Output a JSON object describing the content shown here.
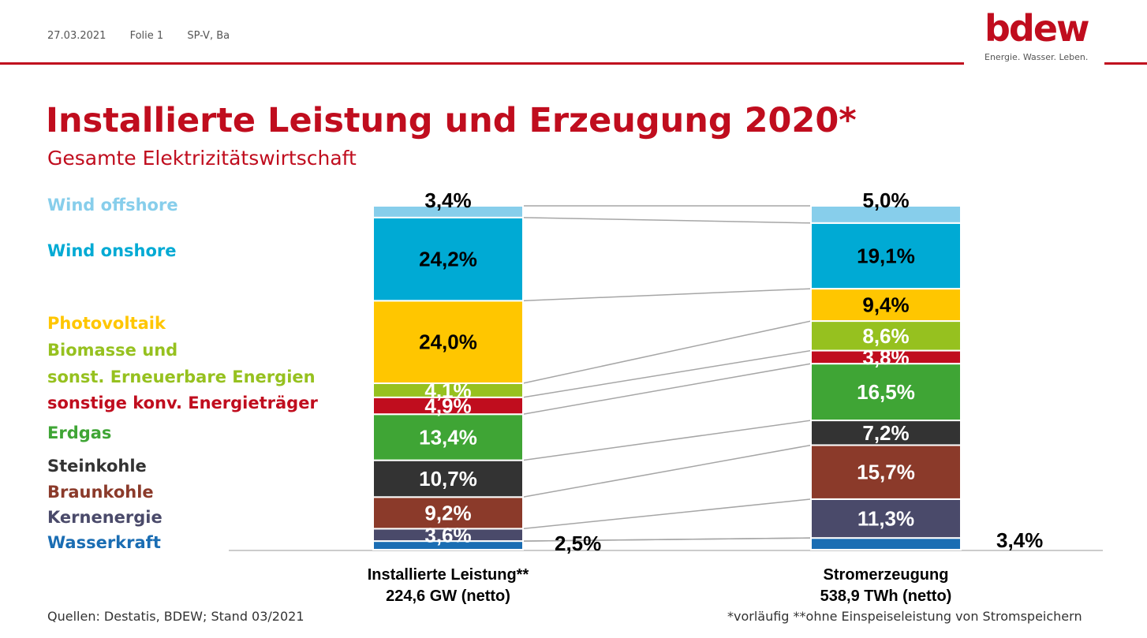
{
  "header": {
    "date": "27.03.2021",
    "slide": "Folie 1",
    "author": "SP-V, Ba"
  },
  "logo": {
    "word": "bdew",
    "tagline": "Energie. Wasser. Leben."
  },
  "title": "Installierte Leistung und Erzeugung 2020*",
  "subtitle": "Gesamte Elektrizitätswirtschaft",
  "legend": [
    {
      "label": "Wind offshore",
      "color": "#87ceeb"
    },
    {
      "label": "Wind onshore",
      "color": "#00aad4"
    },
    {
      "label": "Photovoltaik",
      "color": "#ffc600"
    },
    {
      "label": "Biomasse und",
      "color": "#96c11f"
    },
    {
      "label": "sonst. Erneuerbare Energien",
      "color": "#96c11f"
    },
    {
      "label": "sonstige konv. Energieträger",
      "color": "#c00d1e"
    },
    {
      "label": "Erdgas",
      "color": "#3fa535"
    },
    {
      "label": "Steinkohle",
      "color": "#333333"
    },
    {
      "label": "Braunkohle",
      "color": "#8b3a2a"
    },
    {
      "label": "Kernenergie",
      "color": "#4a4a6a"
    },
    {
      "label": "Wasserkraft",
      "color": "#1a6db3"
    }
  ],
  "chart_data": {
    "type": "bar",
    "stacked": true,
    "categories": [
      "Installierte Leistung**",
      "Stromerzeugung"
    ],
    "category_units": [
      "224,6 GW (netto)",
      "538,9 TWh (netto)"
    ],
    "series": [
      {
        "name": "Wasserkraft",
        "values": [
          2.5,
          3.4
        ],
        "labels": [
          "2,5%",
          "3,4%"
        ],
        "color": "#1a6db3",
        "text_color": "#000000",
        "label_outside": true
      },
      {
        "name": "Kernenergie",
        "values": [
          3.6,
          11.3
        ],
        "labels": [
          "3,6%",
          "11,3%"
        ],
        "color": "#4a4a6a",
        "text_color": "#ffffff"
      },
      {
        "name": "Braunkohle",
        "values": [
          9.2,
          15.7
        ],
        "labels": [
          "9,2%",
          "15,7%"
        ],
        "color": "#8b3a2a",
        "text_color": "#ffffff"
      },
      {
        "name": "Steinkohle",
        "values": [
          10.7,
          7.2
        ],
        "labels": [
          "10,7%",
          "7,2%"
        ],
        "color": "#333333",
        "text_color": "#ffffff"
      },
      {
        "name": "Erdgas",
        "values": [
          13.4,
          16.5
        ],
        "labels": [
          "13,4%",
          "16,5%"
        ],
        "color": "#3fa535",
        "text_color": "#ffffff"
      },
      {
        "name": "sonstige konv. Energieträger",
        "values": [
          4.9,
          3.8
        ],
        "labels": [
          "4,9%",
          "3,8%"
        ],
        "color": "#c00d1e",
        "text_color": "#ffffff"
      },
      {
        "name": "Biomasse und sonst. Erneuerbare Energien",
        "values": [
          4.1,
          8.6
        ],
        "labels": [
          "4,1%",
          "8,6%"
        ],
        "color": "#96c11f",
        "text_color": "#ffffff"
      },
      {
        "name": "Photovoltaik",
        "values": [
          24.0,
          9.4
        ],
        "labels": [
          "24,0%",
          "9,4%"
        ],
        "color": "#ffc600",
        "text_color": "#000000"
      },
      {
        "name": "Wind onshore",
        "values": [
          24.2,
          19.1
        ],
        "labels": [
          "24,2%",
          "19,1%"
        ],
        "color": "#00aad4",
        "text_color": "#000000"
      },
      {
        "name": "Wind offshore",
        "values": [
          3.4,
          5.0
        ],
        "labels": [
          "3,4%",
          "5,0%"
        ],
        "color": "#87ceeb",
        "text_color": "#000000",
        "label_above": true
      }
    ],
    "ylim": [
      0,
      100
    ],
    "connector_lines": true
  },
  "sources": "Quellen: Destatis, BDEW; Stand 03/2021",
  "footnote": "*vorläufig **ohne Einspeiseleistung von Stromspeichern"
}
